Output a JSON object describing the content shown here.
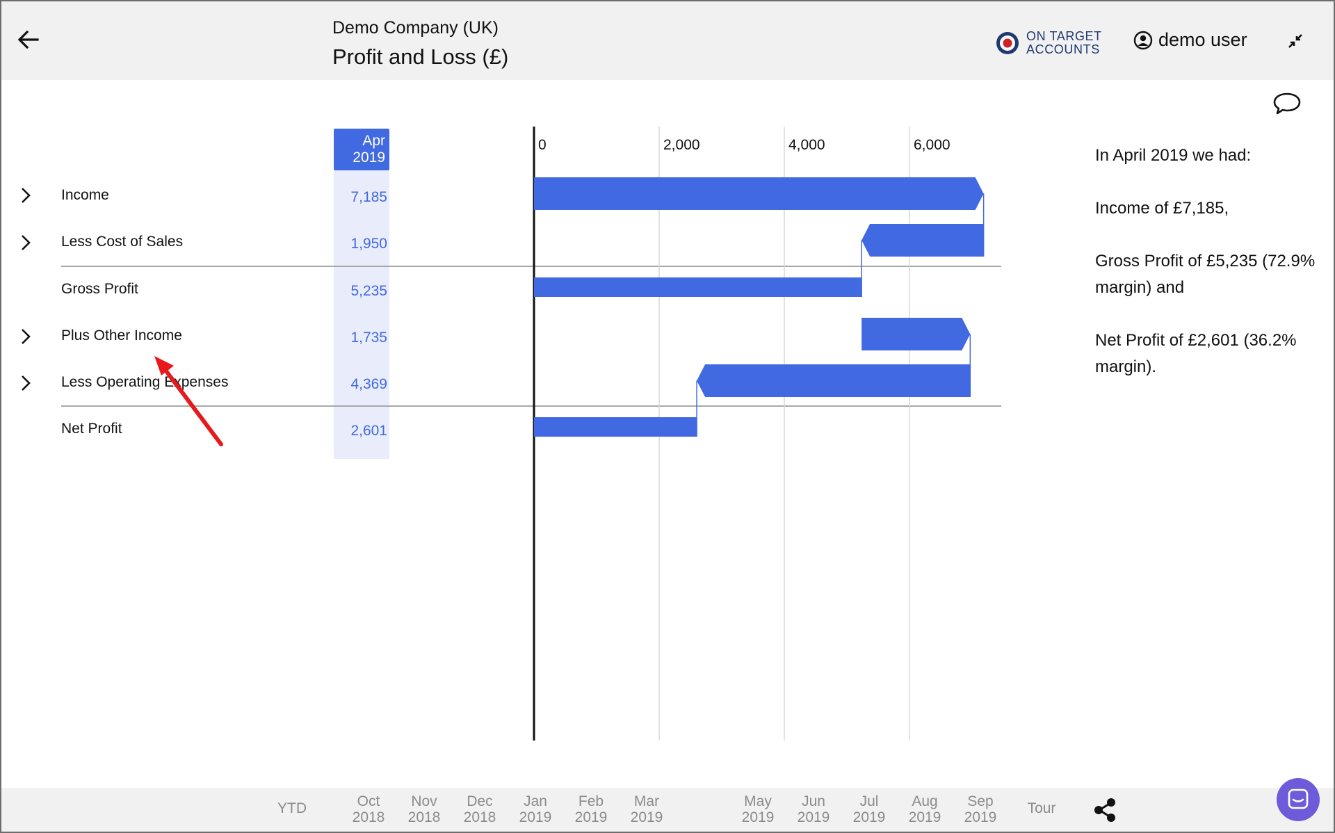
{
  "header": {
    "company": "Demo Company (UK)",
    "title": "Profit and Loss (£)",
    "brand_line1": "ON TARGET",
    "brand_line2": "ACCOUNTS",
    "user": "demo user"
  },
  "table": {
    "column_header_line1": "Apr",
    "column_header_line2": "2019",
    "rows": [
      {
        "label": "Income",
        "value": "7,185",
        "expandable": true
      },
      {
        "label": "Less Cost of Sales",
        "value": "1,950",
        "expandable": true
      },
      {
        "label": "Gross Profit",
        "value": "5,235",
        "expandable": false
      },
      {
        "label": "Plus Other Income",
        "value": "1,735",
        "expandable": true
      },
      {
        "label": "Less Operating Expenses",
        "value": "4,369",
        "expandable": true
      },
      {
        "label": "Net Profit",
        "value": "2,601",
        "expandable": false
      }
    ]
  },
  "chart_data": {
    "type": "bar",
    "subtype": "waterfall",
    "title": "",
    "xlabel": "",
    "ylabel": "",
    "orientation": "horizontal",
    "categories": [
      "Income",
      "Less Cost of Sales",
      "Gross Profit",
      "Plus Other Income",
      "Less Operating Expenses",
      "Net Profit"
    ],
    "bars": [
      {
        "start": 0,
        "end": 7185
      },
      {
        "start": 5235,
        "end": 7185
      },
      {
        "start": 0,
        "end": 5235
      },
      {
        "start": 5235,
        "end": 6970
      },
      {
        "start": 2601,
        "end": 6970
      },
      {
        "start": 0,
        "end": 2601
      }
    ],
    "values": [
      7185,
      1950,
      5235,
      1735,
      4369,
      2601
    ],
    "xlim": [
      0,
      7500
    ],
    "ticks": [
      0,
      2000,
      4000,
      6000
    ],
    "tick_labels": [
      "0",
      "2,000",
      "4,000",
      "6,000"
    ],
    "grid": true,
    "color": "#4169e1"
  },
  "narrative": {
    "intro": "In April 2019 we had:",
    "income": "Income of £7,185,",
    "gross": "Gross Profit of £5,235 (72.9% margin) and",
    "net": "Net Profit of £2,601 (36.2% margin)."
  },
  "timeline": [
    {
      "line1": "YTD",
      "line2": ""
    },
    {
      "line1": "Oct",
      "line2": "2018"
    },
    {
      "line1": "Nov",
      "line2": "2018"
    },
    {
      "line1": "Dec",
      "line2": "2018"
    },
    {
      "line1": "Jan",
      "line2": "2019"
    },
    {
      "line1": "Feb",
      "line2": "2019"
    },
    {
      "line1": "Mar",
      "line2": "2019"
    },
    {
      "line1": "May",
      "line2": "2019"
    },
    {
      "line1": "Jun",
      "line2": "2019"
    },
    {
      "line1": "Jul",
      "line2": "2019"
    },
    {
      "line1": "Aug",
      "line2": "2019"
    },
    {
      "line1": "Sep",
      "line2": "2019"
    },
    {
      "line1": "Tour",
      "line2": ""
    }
  ],
  "colors": {
    "accent": "#4169e1",
    "header_bg": "#f1f1f1",
    "column_band": "#e9edfb",
    "annotation_arrow": "#e8191d",
    "chat_button": "#6e5bd9"
  },
  "icons": {
    "back": "arrow-left-icon",
    "brand": "target-roundel-icon",
    "user": "account-circle-icon",
    "collapse": "collapse-arrows-icon",
    "comment": "speech-bubble-icon",
    "expand": "chevron-right-icon",
    "share": "share-icon",
    "chat": "chat-icon"
  }
}
